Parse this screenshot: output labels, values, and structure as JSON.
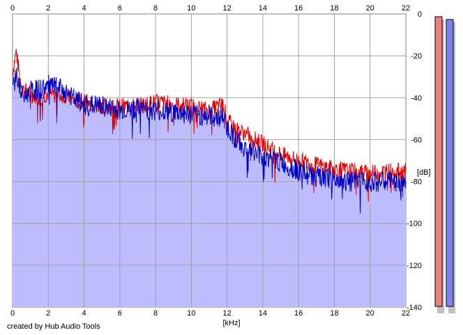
{
  "app": {
    "credit": "created by Hub Audio Tools"
  },
  "colors": {
    "left_channel": "#e00000",
    "right_channel": "#0000c8",
    "fill": "#bcbcff",
    "grid": "#a0a0a0",
    "left_meter": "#f08080",
    "right_meter": "#8080ee"
  },
  "chart_data": {
    "type": "line",
    "xlabel": "[kHz]",
    "ylabel": "[dB]",
    "xlim": [
      0,
      22
    ],
    "ylim": [
      -140,
      0
    ],
    "x_ticks": [
      "0",
      "2",
      "4",
      "6",
      "8",
      "10",
      "12",
      "14",
      "16",
      "18",
      "20",
      "22"
    ],
    "y_ticks": [
      "0",
      "-20",
      "-40",
      "-60",
      "-80",
      "-100",
      "-120",
      "-140"
    ],
    "grid": true,
    "series": [
      {
        "color": "#e00000",
        "x": [
          0,
          0.2,
          0.4,
          0.6,
          1,
          1.5,
          2,
          2.5,
          3,
          3.5,
          4,
          5,
          6,
          7,
          8,
          9,
          10,
          11,
          11.8,
          12,
          12.5,
          13,
          14,
          15,
          16,
          17,
          18,
          19,
          20,
          21,
          22
        ],
        "values": [
          -28,
          -18,
          -30,
          -36,
          -38,
          -40,
          -38,
          -39,
          -39,
          -42,
          -42,
          -44,
          -44,
          -44,
          -42,
          -43,
          -44,
          -46,
          -43,
          -51,
          -55,
          -57,
          -62,
          -67,
          -70,
          -72,
          -74,
          -75,
          -76,
          -75,
          -75
        ]
      },
      {
        "color": "#0000c8",
        "x": [
          0,
          0.2,
          0.4,
          0.6,
          1,
          1.5,
          2,
          2.5,
          3,
          3.5,
          4,
          5,
          6,
          7,
          8,
          9,
          10,
          11,
          11.8,
          12,
          12.5,
          13,
          14,
          15,
          16,
          17,
          18,
          19,
          20,
          21,
          22
        ],
        "values": [
          -35,
          -28,
          -36,
          -40,
          -37,
          -36,
          -34,
          -35,
          -37,
          -41,
          -43,
          -44,
          -46,
          -45,
          -46,
          -47,
          -48,
          -49,
          -49,
          -54,
          -60,
          -64,
          -68,
          -71,
          -75,
          -78,
          -79,
          -80,
          -80,
          -80,
          -80
        ]
      }
    ],
    "meters": {
      "left_db": -2,
      "right_db": -2
    }
  }
}
